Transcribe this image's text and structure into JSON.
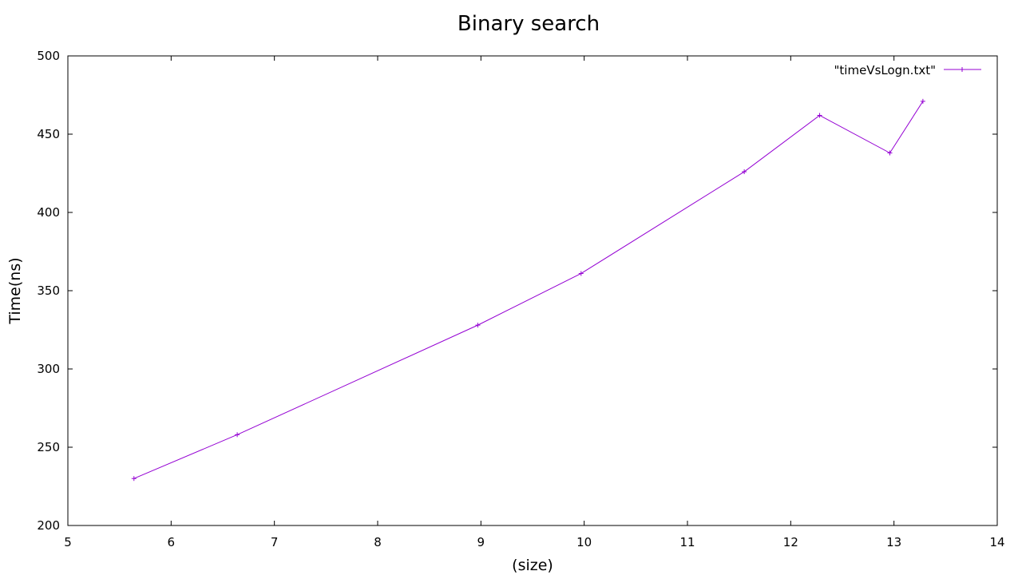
{
  "chart_data": {
    "type": "line",
    "title": "Binary search",
    "xlabel": "(size)",
    "ylabel": "Time(ns)",
    "xlim": [
      5,
      14
    ],
    "ylim": [
      200,
      500
    ],
    "x_ticks": [
      "5",
      "6",
      "7",
      "8",
      "9",
      "10",
      "11",
      "12",
      "13",
      "14"
    ],
    "y_ticks": [
      "200",
      "250",
      "300",
      "350",
      "400",
      "450",
      "500"
    ],
    "grid": false,
    "legend": "top-right",
    "series": [
      {
        "name": "\"timeVsLogn.txt\"",
        "color": "#9400d3",
        "marker": "plus",
        "x": [
          5.64,
          6.64,
          8.97,
          9.97,
          11.55,
          12.28,
          12.96,
          13.28
        ],
        "y": [
          230,
          258,
          328,
          361,
          426,
          462,
          438,
          471
        ]
      }
    ]
  }
}
